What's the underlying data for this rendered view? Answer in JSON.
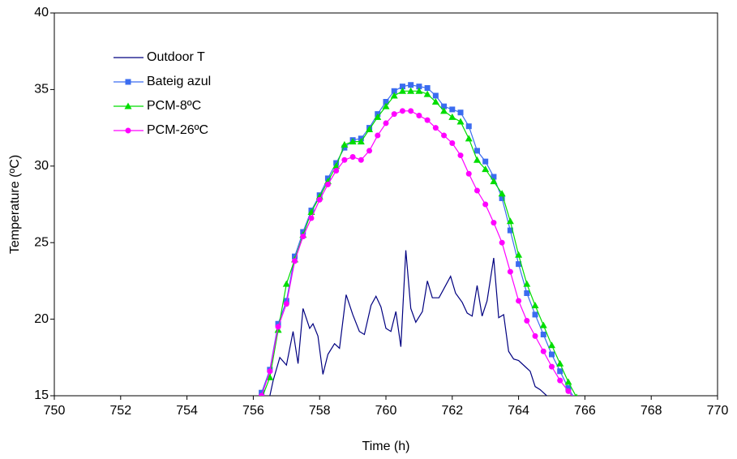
{
  "chart_data": {
    "type": "line",
    "xlabel": "Time (h)",
    "ylabel": "Temperature (ºC)",
    "xlim": [
      750,
      770
    ],
    "xticks": [
      750,
      752,
      754,
      756,
      758,
      760,
      762,
      764,
      766,
      768,
      770
    ],
    "ylim": [
      15,
      40
    ],
    "yticks": [
      15,
      20,
      25,
      30,
      35,
      40
    ],
    "grid": false,
    "legend": "upper-left",
    "series": [
      {
        "name": "Outdoor T",
        "color": "#000080",
        "marker": "none",
        "x": [
          756.4,
          756.6,
          756.8,
          757.0,
          757.2,
          757.35,
          757.5,
          757.7,
          757.8,
          757.95,
          758.1,
          758.25,
          758.45,
          758.6,
          758.8,
          759.0,
          759.2,
          759.35,
          759.55,
          759.7,
          759.85,
          760.0,
          760.15,
          760.3,
          760.45,
          760.6,
          760.75,
          760.9,
          761.1,
          761.25,
          761.4,
          761.6,
          761.8,
          761.95,
          762.1,
          762.3,
          762.45,
          762.6,
          762.75,
          762.9,
          763.05,
          763.25,
          763.4,
          763.55,
          763.7,
          763.85,
          764.0,
          764.2,
          764.35,
          764.5,
          764.65,
          764.85,
          765.0
        ],
        "values": [
          14.0,
          16.0,
          17.5,
          17.0,
          19.2,
          17.1,
          20.7,
          19.4,
          19.7,
          18.9,
          16.4,
          17.7,
          18.4,
          18.1,
          21.6,
          20.3,
          19.2,
          19.0,
          20.9,
          21.5,
          20.8,
          19.4,
          19.2,
          20.5,
          18.2,
          24.5,
          20.7,
          19.8,
          20.5,
          22.5,
          21.4,
          21.4,
          22.2,
          22.8,
          21.7,
          21.1,
          20.4,
          20.2,
          22.2,
          20.2,
          21.2,
          24.0,
          20.1,
          20.3,
          17.9,
          17.4,
          17.3,
          16.9,
          16.6,
          15.6,
          15.4,
          15.0,
          14.3
        ]
      },
      {
        "name": "Bateig azul",
        "color": "#3b6cf0",
        "marker": "square",
        "x": [
          756.25,
          756.5,
          756.75,
          757.0,
          757.25,
          757.5,
          757.75,
          758.0,
          758.25,
          758.5,
          758.75,
          759.0,
          759.25,
          759.5,
          759.75,
          760.0,
          760.25,
          760.5,
          760.75,
          761.0,
          761.25,
          761.5,
          761.75,
          762.0,
          762.25,
          762.5,
          762.75,
          763.0,
          763.25,
          763.5,
          763.75,
          764.0,
          764.25,
          764.5,
          764.75,
          765.0,
          765.25,
          765.5,
          765.75
        ],
        "values": [
          15.2,
          16.7,
          19.7,
          21.2,
          24.1,
          25.7,
          27.1,
          28.1,
          29.2,
          30.2,
          31.2,
          31.7,
          31.8,
          32.5,
          33.4,
          34.2,
          34.9,
          35.2,
          35.3,
          35.2,
          35.1,
          34.6,
          33.9,
          33.7,
          33.5,
          32.6,
          31.0,
          30.3,
          29.3,
          27.9,
          25.8,
          23.6,
          21.7,
          20.3,
          19.0,
          17.7,
          16.6,
          15.5,
          14.6
        ]
      },
      {
        "name": "PCM-8ºC",
        "color": "#00dd00",
        "marker": "triangle",
        "x": [
          756.25,
          756.5,
          756.75,
          757.0,
          757.25,
          757.5,
          757.75,
          758.0,
          758.25,
          758.5,
          758.75,
          759.0,
          759.25,
          759.5,
          759.75,
          760.0,
          760.25,
          760.5,
          760.75,
          761.0,
          761.25,
          761.5,
          761.75,
          762.0,
          762.25,
          762.5,
          762.75,
          763.0,
          763.25,
          763.5,
          763.75,
          764.0,
          764.25,
          764.5,
          764.75,
          765.0,
          765.25,
          765.5,
          765.75
        ],
        "values": [
          14.8,
          16.2,
          19.3,
          22.3,
          23.9,
          25.5,
          27.0,
          28.0,
          29.0,
          30.0,
          31.4,
          31.6,
          31.6,
          32.4,
          33.2,
          33.9,
          34.6,
          34.9,
          34.9,
          34.9,
          34.7,
          34.2,
          33.6,
          33.2,
          32.9,
          31.8,
          30.4,
          29.8,
          29.0,
          28.2,
          26.4,
          24.2,
          22.3,
          20.9,
          19.6,
          18.3,
          17.1,
          15.9,
          14.9
        ]
      },
      {
        "name": "PCM-26ºC",
        "color": "#ff00ff",
        "marker": "circle",
        "x": [
          756.25,
          756.5,
          756.75,
          757.0,
          757.25,
          757.5,
          757.75,
          758.0,
          758.25,
          758.5,
          758.75,
          759.0,
          759.25,
          759.5,
          759.75,
          760.0,
          760.25,
          760.5,
          760.75,
          761.0,
          761.25,
          761.5,
          761.75,
          762.0,
          762.25,
          762.5,
          762.75,
          763.0,
          763.25,
          763.5,
          763.75,
          764.0,
          764.25,
          764.5,
          764.75,
          765.0,
          765.25,
          765.5,
          765.75
        ],
        "values": [
          15.0,
          16.6,
          19.5,
          21.0,
          23.8,
          25.4,
          26.6,
          27.8,
          28.8,
          29.7,
          30.4,
          30.6,
          30.4,
          31.0,
          32.0,
          32.8,
          33.4,
          33.6,
          33.6,
          33.3,
          33.0,
          32.5,
          32.0,
          31.5,
          30.7,
          29.5,
          28.4,
          27.5,
          26.3,
          25.0,
          23.1,
          21.2,
          19.9,
          18.9,
          17.9,
          16.9,
          16.0,
          15.3,
          14.6
        ]
      }
    ]
  }
}
